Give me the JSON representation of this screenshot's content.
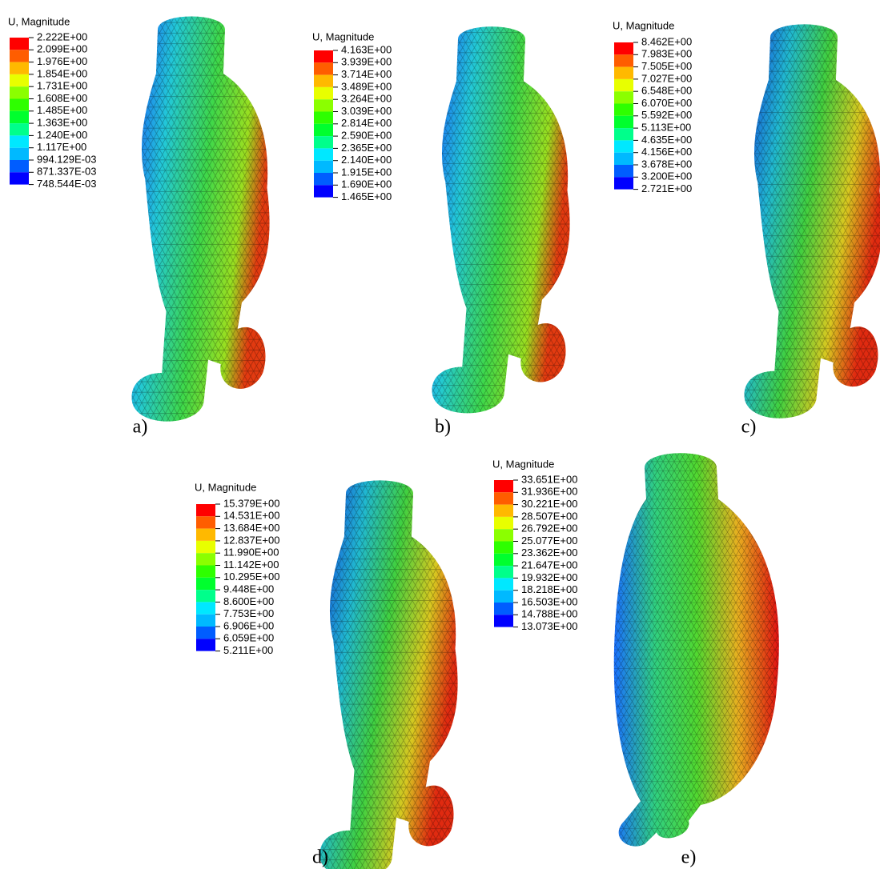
{
  "legend_colors": [
    "#ff0000",
    "#ff5d00",
    "#ffb900",
    "#e8ff00",
    "#8bff00",
    "#2eff00",
    "#00ff2e",
    "#00ff8b",
    "#00e8ff",
    "#00b9ff",
    "#005dff",
    "#0000ff"
  ],
  "panels": [
    {
      "legend_title": "U, Magnitude",
      "caption": "a)",
      "labels": [
        "2.222E+00",
        "2.099E+00",
        "1.976E+00",
        "1.854E+00",
        "1.731E+00",
        "1.608E+00",
        "1.485E+00",
        "1.363E+00",
        "1.240E+00",
        "1.117E+00",
        "994.129E-03",
        "871.337E-03",
        "748.544E-03"
      ]
    },
    {
      "legend_title": "U, Magnitude",
      "caption": "b)",
      "labels": [
        "4.163E+00",
        "3.939E+00",
        "3.714E+00",
        "3.489E+00",
        "3.264E+00",
        "3.039E+00",
        "2.814E+00",
        "2.590E+00",
        "2.365E+00",
        "2.140E+00",
        "1.915E+00",
        "1.690E+00",
        "1.465E+00"
      ]
    },
    {
      "legend_title": "U, Magnitude",
      "caption": "c)",
      "labels": [
        "8.462E+00",
        "7.983E+00",
        "7.505E+00",
        "7.027E+00",
        "6.548E+00",
        "6.070E+00",
        "5.592E+00",
        "5.113E+00",
        "4.635E+00",
        "4.156E+00",
        "3.678E+00",
        "3.200E+00",
        "2.721E+00"
      ]
    },
    {
      "legend_title": "U, Magnitude",
      "caption": "d)",
      "labels": [
        "15.379E+00",
        "14.531E+00",
        "13.684E+00",
        "12.837E+00",
        "11.990E+00",
        "11.142E+00",
        "10.295E+00",
        "9.448E+00",
        "8.600E+00",
        "7.753E+00",
        "6.906E+00",
        "6.059E+00",
        "5.211E+00"
      ]
    },
    {
      "legend_title": "U, Magnitude",
      "caption": "e)",
      "labels": [
        "33.651E+00",
        "31.936E+00",
        "30.221E+00",
        "28.507E+00",
        "26.792E+00",
        "25.077E+00",
        "23.362E+00",
        "21.647E+00",
        "19.932E+00",
        "18.218E+00",
        "16.503E+00",
        "14.788E+00",
        "13.073E+00"
      ]
    }
  ]
}
